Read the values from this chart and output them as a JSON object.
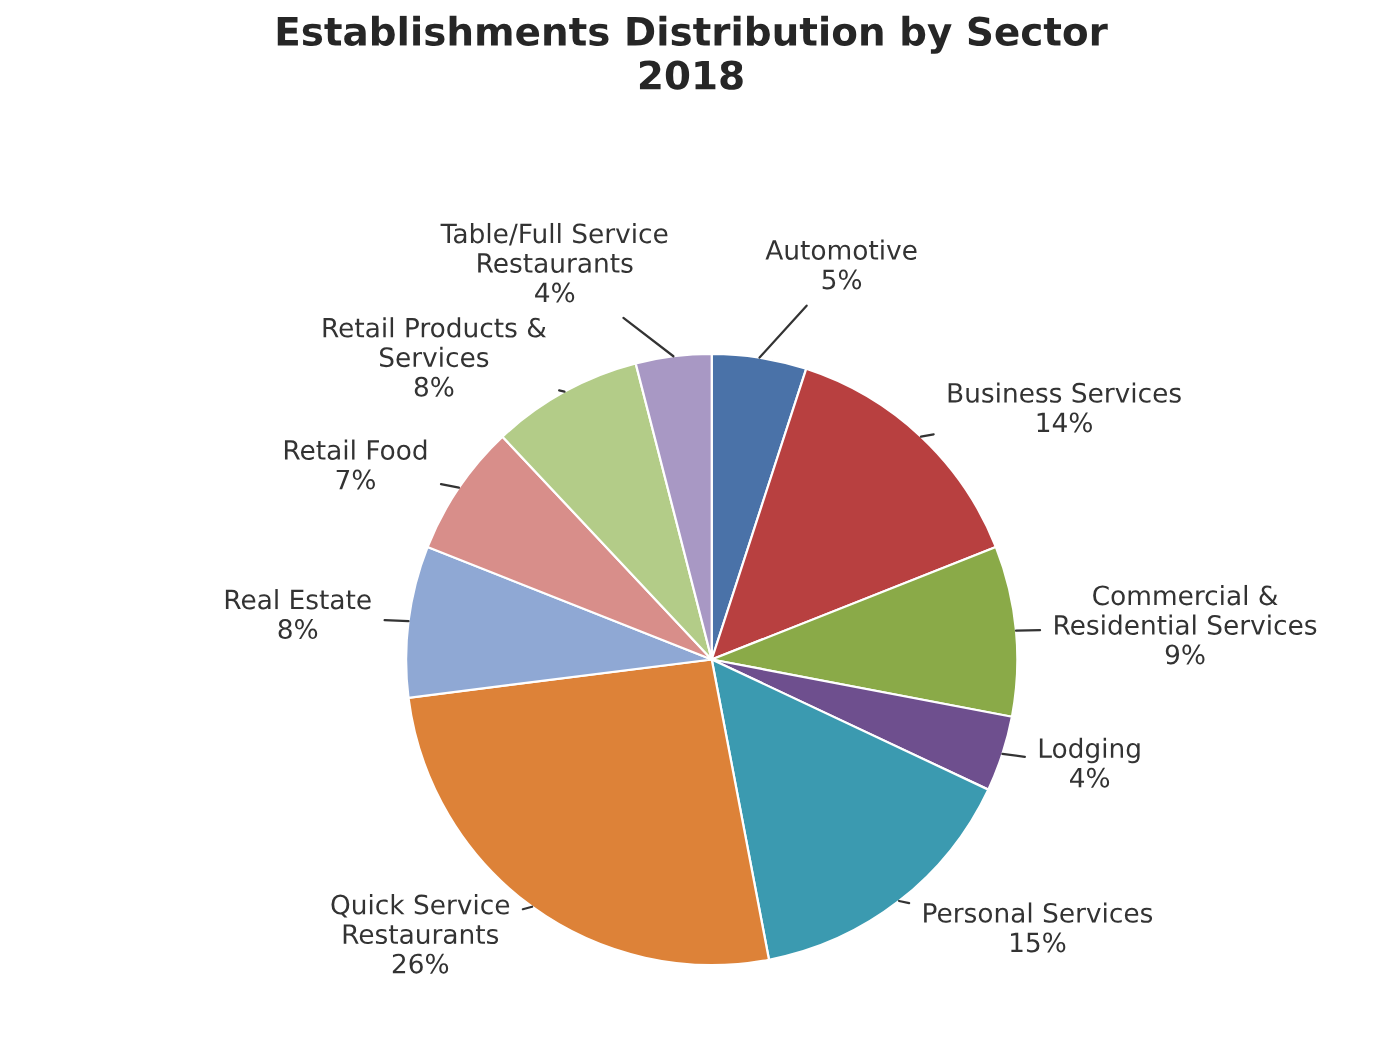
{
  "chart_data": {
    "type": "pie",
    "title": "Establishments Distribution by Sector\n2018",
    "categories": [
      "Automotive",
      "Business Services",
      "Commercial & Residential Services",
      "Lodging",
      "Personal Services",
      "Quick Service Restaurants",
      "Real Estate",
      "Retail Food",
      "Retail Products & Services",
      "Table/Full Service Restaurants"
    ],
    "values": [
      5,
      14,
      9,
      4,
      15,
      26,
      8,
      7,
      8,
      4
    ],
    "value_labels": [
      "5%",
      "14%",
      "9%",
      "4%",
      "15%",
      "26%",
      "8%",
      "7%",
      "8%",
      "4%"
    ],
    "colors": [
      "#4a72a8",
      "#b84040",
      "#8aaa48",
      "#6e4f8e",
      "#3b9ab0",
      "#dd8238",
      "#8fa8d4",
      "#d88e8a",
      "#b3cc88",
      "#a898c4"
    ]
  }
}
